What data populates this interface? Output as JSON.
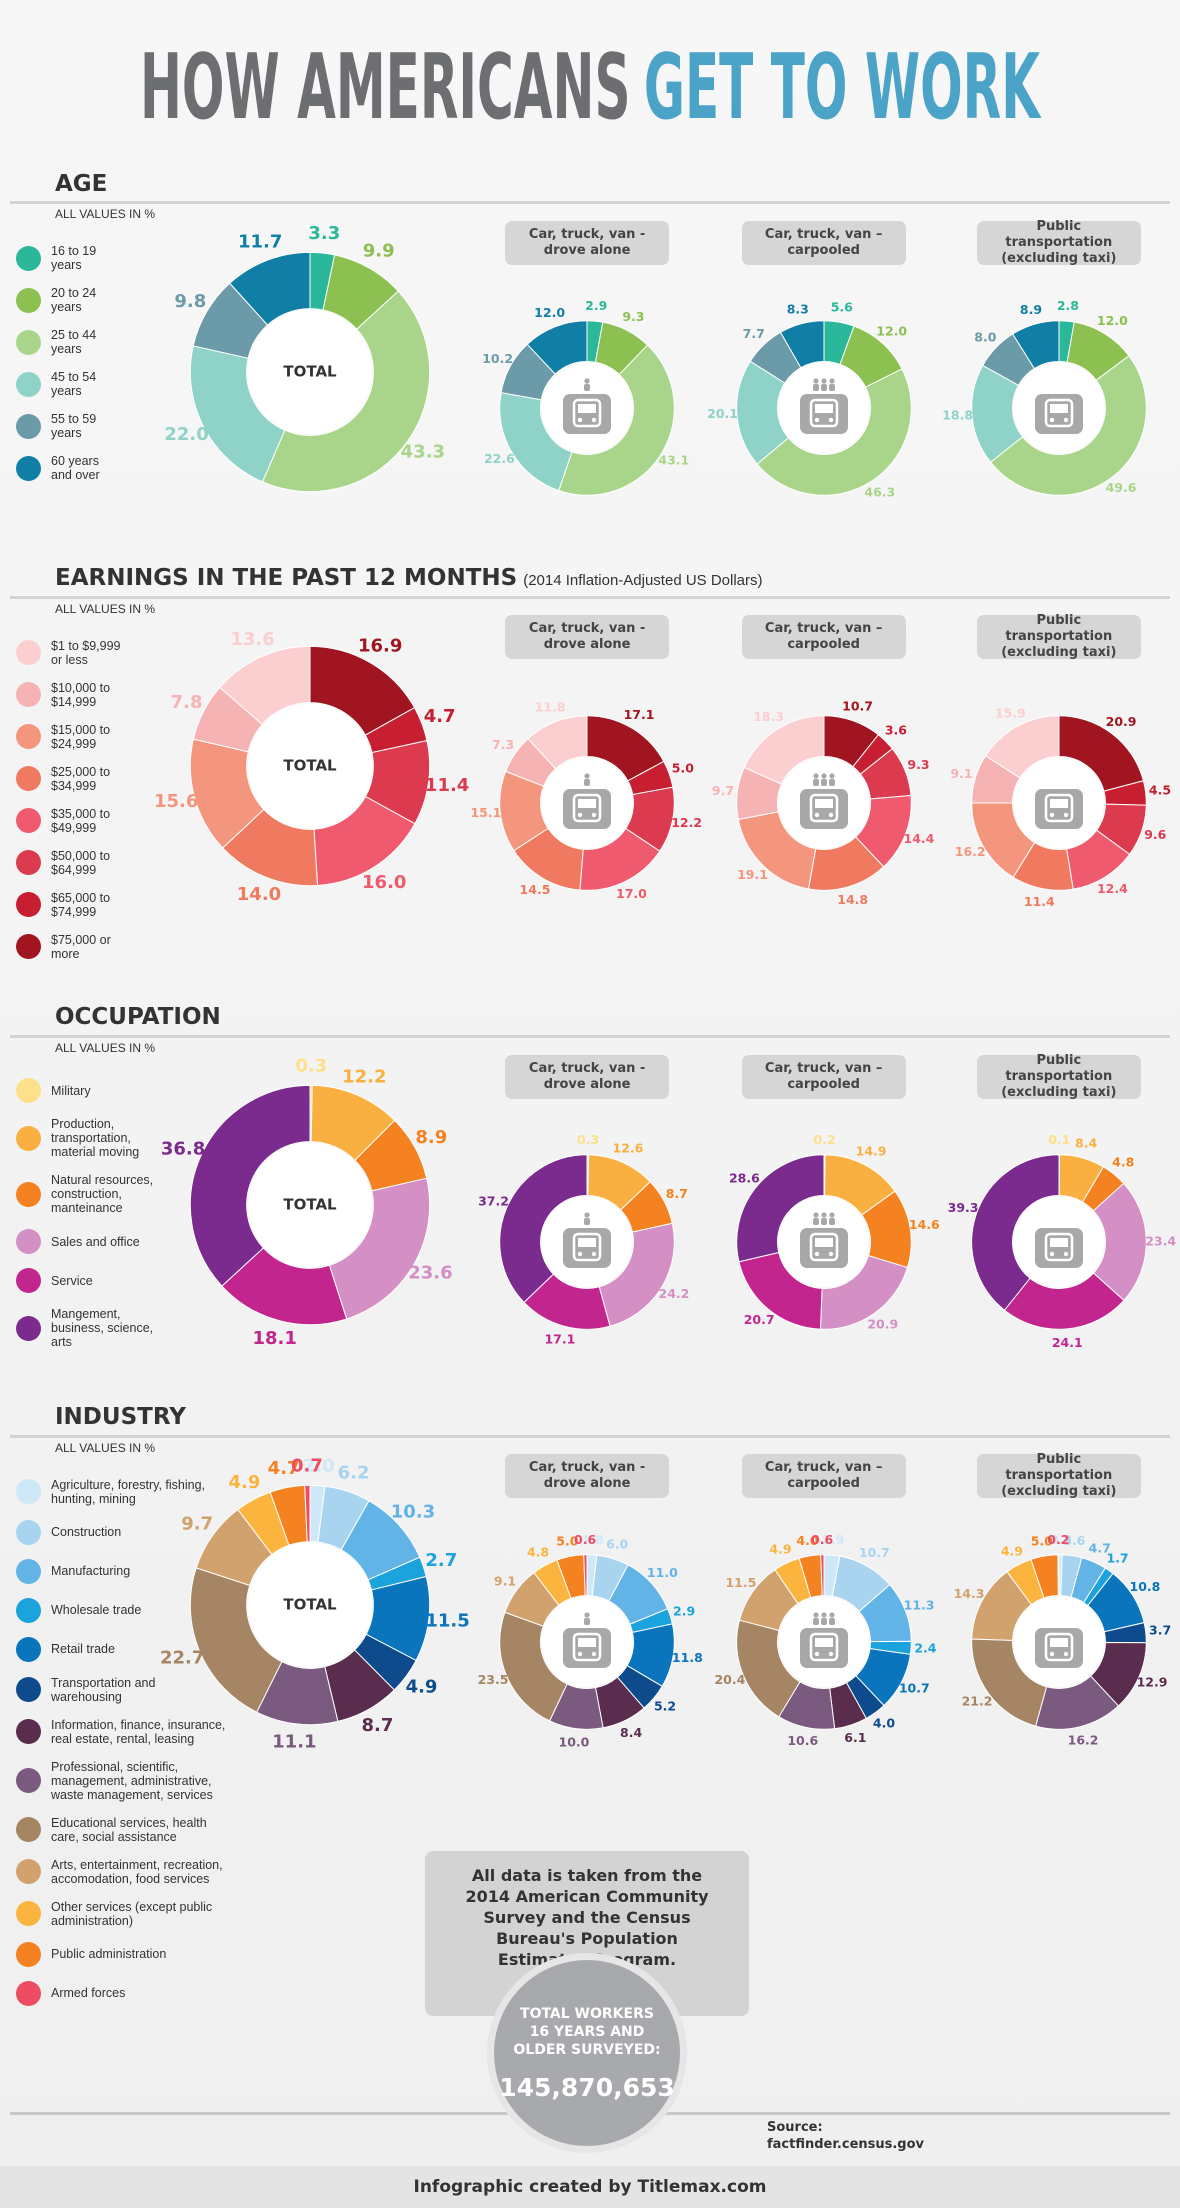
{
  "title_main": "HOW AMERICANS",
  "title_highlight": "GET TO WORK",
  "chart_data": [
    {
      "type": "donut",
      "title": "AGE",
      "note": "ALL VALUES IN %",
      "categories": [
        "16 to 19 years",
        "20 to 24 years",
        "25 to 44 years",
        "45 to 54 years",
        "55 to 59 years",
        "60 years and over"
      ],
      "colors": [
        "#2bb89a",
        "#8cc152",
        "#a8d58a",
        "#8fd3c8",
        "#6b9aa8",
        "#117fa5"
      ],
      "series": [
        {
          "name": "TOTAL",
          "values": [
            3.3,
            9.9,
            43.3,
            22.0,
            9.8,
            11.7
          ],
          "value_labels": [
            "3.3",
            "9.9",
            "43.3",
            "22.0",
            "9.8",
            "11.7"
          ]
        },
        {
          "name": "Car, truck, van - drove alone",
          "values": [
            2.9,
            9.3,
            43.1,
            22.6,
            10.2,
            12.0
          ],
          "value_labels": [
            "2.9",
            "9.3",
            "43.1",
            "22.6",
            "10.2",
            "12.0"
          ]
        },
        {
          "name": "Car, truck, van – carpooled",
          "values": [
            5.6,
            12.0,
            46.3,
            20.1,
            7.7,
            8.3
          ],
          "value_labels": [
            "5.6",
            "12.0",
            "46.3",
            "20.1",
            "7.7",
            "8.3"
          ]
        },
        {
          "name": "Public transportation (excluding taxi)",
          "values": [
            2.8,
            12.0,
            49.6,
            18.8,
            8.0,
            8.9
          ],
          "value_labels": [
            "2.8",
            "12.0",
            "49.6",
            "18.8",
            "8.0",
            "8.9"
          ]
        }
      ]
    },
    {
      "type": "donut",
      "title": "EARNINGS IN THE PAST 12 MONTHS",
      "subtitle": "(2014 Inflation-Adjusted US Dollars)",
      "note": "ALL VALUES IN %",
      "reverse": true,
      "categories": [
        "$1 to $9,999 or less",
        "$10,000 to $14,999",
        "$15,000 to $24,999",
        "$25,000 to $34,999",
        "$35,000 to $49,999",
        "$50,000 to $64,999",
        "$65,000 to $74,999",
        "$75,000 or more"
      ],
      "colors": [
        "#fbcfcf",
        "#f6b3b3",
        "#f4967e",
        "#f07a5f",
        "#ef5a6e",
        "#dc3a4f",
        "#c81e32",
        "#a0151f"
      ],
      "series": [
        {
          "name": "TOTAL",
          "values": [
            13.6,
            7.8,
            15.6,
            14.0,
            16.0,
            11.4,
            4.7,
            16.9
          ],
          "value_labels": [
            "13.6",
            "7.8",
            "15.6",
            "14.0",
            "16.0",
            "11.4",
            "4.7",
            "16.9"
          ]
        },
        {
          "name": "Car, truck, van - drove alone",
          "values": [
            11.8,
            7.3,
            15.1,
            14.5,
            17.0,
            12.2,
            5.0,
            17.1
          ],
          "value_labels": [
            "11.8",
            "7.3",
            "15.1",
            "14.5",
            "17.0",
            "12.2",
            "5.0",
            "17.1"
          ]
        },
        {
          "name": "Car, truck, van – carpooled",
          "values": [
            18.3,
            9.7,
            19.1,
            14.8,
            14.4,
            9.3,
            3.6,
            10.7
          ],
          "value_labels": [
            "18.3",
            "9.7",
            "19.1",
            "14.8",
            "14.4",
            "9.3",
            "3.6",
            "10.7"
          ]
        },
        {
          "name": "Public transportation (excluding taxi)",
          "values": [
            15.9,
            9.1,
            16.2,
            11.4,
            12.4,
            9.6,
            4.5,
            20.9
          ],
          "value_labels": [
            "15.9",
            "9.1",
            "16.2",
            "11.4",
            "12.4",
            "9.6",
            "4.5",
            "20.9"
          ]
        }
      ]
    },
    {
      "type": "donut",
      "title": "OCCUPATION",
      "note": "ALL VALUES IN %",
      "categories": [
        "Military",
        "Production, transportation, material moving",
        "Natural resources, construction, manteinance",
        "Sales and office",
        "Service",
        "Mangement, business, science, arts"
      ],
      "colors": [
        "#fde08a",
        "#f9b040",
        "#f58220",
        "#d48fc4",
        "#c2268e",
        "#7b2a8e"
      ],
      "series": [
        {
          "name": "TOTAL",
          "values": [
            0.3,
            12.2,
            8.9,
            23.6,
            18.1,
            36.8
          ],
          "value_labels": [
            "0.3",
            "12.2",
            "8.9",
            "23.6",
            "18.1",
            "36.8"
          ]
        },
        {
          "name": "Car, truck, van - drove alone",
          "values": [
            0.3,
            12.6,
            8.7,
            24.2,
            17.1,
            37.2
          ],
          "value_labels": [
            "0.3",
            "12.6",
            "8.7",
            "24.2",
            "17.1",
            "37.2"
          ]
        },
        {
          "name": "Car, truck, van – carpooled",
          "values": [
            0.2,
            14.9,
            14.6,
            20.9,
            20.7,
            28.6
          ],
          "value_labels": [
            "0.2",
            "14.9",
            "14.6",
            "20.9",
            "20.7",
            "28.6"
          ]
        },
        {
          "name": "Public transportation (excluding taxi)",
          "values": [
            0.1,
            8.4,
            4.8,
            23.4,
            24.1,
            39.3
          ],
          "value_labels": [
            "0.1",
            "8.4",
            "4.8",
            "23.4",
            "24.1",
            "39.3"
          ]
        }
      ]
    },
    {
      "type": "donut",
      "title": "INDUSTRY",
      "note": "ALL VALUES IN %",
      "categories": [
        "Agriculture, forestry, fishing, hunting, mining",
        "Construction",
        "Manufacturing",
        "Wholesale trade",
        "Retail trade",
        "Transportation and warehousing",
        "Information, finance, insurance, real estate, rental, leasing",
        "Professional, scientific, management, administrative, waste management, services",
        "Educational services, health care, social assistance",
        "Arts, entertainment, recreation, accomodation, food services",
        "Other services (except public administration)",
        "Public administration",
        "Armed forces"
      ],
      "colors": [
        "#cfe8f7",
        "#a9d4f0",
        "#62b4e6",
        "#1aa3dd",
        "#0a74bd",
        "#0e4b8c",
        "#5a2d4e",
        "#7a5a7e",
        "#a58563",
        "#d1a26e",
        "#fbb53e",
        "#f58220",
        "#ee4c62"
      ],
      "series": [
        {
          "name": "TOTAL",
          "values": [
            2.0,
            6.2,
            10.3,
            2.7,
            11.5,
            4.9,
            8.7,
            11.1,
            22.7,
            9.7,
            4.9,
            4.7,
            0.7
          ],
          "value_labels": [
            "2.0",
            "6.2",
            "10.3",
            "2.7",
            "11.5",
            "4.9",
            "8.7",
            "11.1",
            "22.7",
            "9.7",
            "4.9",
            "4.7",
            "0.7"
          ]
        },
        {
          "name": "Car, truck, van - drove alone",
          "values": [
            1.8,
            6.0,
            11.0,
            2.9,
            11.8,
            5.2,
            8.4,
            10.0,
            23.5,
            9.1,
            4.8,
            5.0,
            0.6
          ],
          "value_labels": [
            "1.8",
            "6.0",
            "11.0",
            "2.9",
            "11.8",
            "5.2",
            "8.4",
            "10.0",
            "23.5",
            "9.1",
            "4.8",
            "5.0",
            "0.6"
          ]
        },
        {
          "name": "Car, truck, van – carpooled",
          "values": [
            2.9,
            10.7,
            11.3,
            2.4,
            10.7,
            4.0,
            6.1,
            10.6,
            20.4,
            11.5,
            4.9,
            4.0,
            0.6
          ],
          "value_labels": [
            "2.9",
            "10.7",
            "11.3",
            "2.4",
            "10.7",
            "4.0",
            "6.1",
            "10.6",
            "20.4",
            "11.5",
            "4.9",
            "4.0",
            "0.6"
          ]
        },
        {
          "name": "Public transportation (excluding taxi)",
          "values": [
            0.6,
            3.6,
            4.7,
            1.7,
            10.8,
            3.7,
            12.9,
            16.2,
            21.2,
            14.3,
            4.9,
            5.0,
            0.2
          ],
          "value_labels": [
            "0.6",
            "3.6",
            "4.7",
            "1.7",
            "10.8",
            "3.7",
            "12.9",
            "16.2",
            "21.2",
            "14.3",
            "4.9",
            "5.0",
            "0.2"
          ]
        }
      ]
    }
  ],
  "footnote": {
    "text": "All data is taken from the 2014 American Community Survey and the Census Bureau's Population Estimates Program.",
    "total_label": "TOTAL WORKERS 16 YEARS AND OLDER SURVEYED:",
    "total_value": "145,870,653",
    "source_label": "Source:",
    "source": "factfinder.census.gov",
    "credit": "Infographic created by Titlemax.com"
  }
}
